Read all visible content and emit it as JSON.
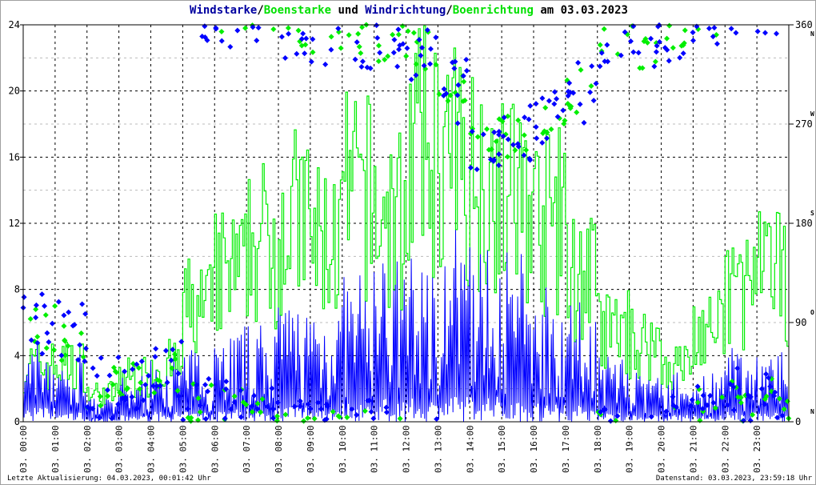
{
  "title": {
    "part1": "Windstarke",
    "sep1": "/",
    "part2": "Boenstarke",
    "part3": " und ",
    "part4": "Windrichtung",
    "sep2": "/",
    "part5": "Boenrichtung",
    "part6": " am 03.03.2023"
  },
  "footer": {
    "left": "Letzte Aktualisierung: 04.03.2023, 00:01:42 Uhr",
    "right": "Datenstand: 03.03.2023, 23:59:18 Uhr"
  },
  "colors": {
    "wind": "#0000ff",
    "gust": "#00ee00",
    "wind_dir": "#0000ff",
    "gust_dir": "#00ee00",
    "title_wind": "#0000a0",
    "grid": "#000000"
  },
  "chart_data": {
    "type": "line",
    "x_tick_labels": [
      "03. 00:00",
      "03. 01:00",
      "03. 02:00",
      "03. 03:00",
      "03. 04:00",
      "03. 05:00",
      "03. 06:00",
      "03. 07:00",
      "03. 08:00",
      "03. 09:00",
      "03. 10:00",
      "03. 11:00",
      "03. 12:00",
      "03. 13:00",
      "03. 14:00",
      "03. 15:00",
      "03. 16:00",
      "03. 17:00",
      "03. 18:00",
      "03. 19:00",
      "03. 20:00",
      "03. 21:00",
      "03. 22:00",
      "03. 23:00"
    ],
    "y_left": {
      "ylim": [
        0,
        24
      ],
      "ticks": [
        "0",
        "4",
        "8",
        "12",
        "16",
        "20",
        "24"
      ]
    },
    "y_right": {
      "ylim": [
        0,
        360
      ],
      "ticks": [
        "0",
        "90",
        "180",
        "270",
        "360"
      ],
      "compass": [
        "N",
        "O",
        "S",
        "W",
        "N"
      ]
    },
    "grid": true,
    "series": [
      {
        "name": "Windstarke",
        "kind": "line",
        "hourly_mean": [
          4.5,
          3,
          1,
          2,
          3,
          3,
          4,
          4,
          5,
          5,
          6,
          7,
          7,
          8,
          8,
          7,
          6,
          5,
          3,
          2,
          2,
          2,
          3,
          3
        ]
      },
      {
        "name": "Boenstarke",
        "kind": "step",
        "hourly_max": [
          5,
          5,
          2.5,
          4,
          5,
          10,
          13,
          16,
          18,
          16,
          20,
          18,
          24,
          23,
          22,
          20,
          18,
          13,
          8,
          7,
          5,
          8,
          12,
          13
        ]
      },
      {
        "name": "Windrichtung",
        "kind": "scatter",
        "hourly_deg": [
          90,
          80,
          30,
          40,
          45,
          15,
          10,
          5,
          355,
          350,
          350,
          345,
          340,
          300,
          250,
          260,
          270,
          300,
          350,
          340,
          355,
          10,
          20,
          20
        ]
      },
      {
        "name": "Boenrichtung",
        "kind": "scatter",
        "hourly_deg": [
          85,
          75,
          30,
          40,
          45,
          15,
          10,
          5,
          355,
          350,
          350,
          345,
          340,
          300,
          255,
          260,
          270,
          300,
          350,
          340,
          355,
          10,
          20,
          20
        ]
      }
    ]
  }
}
